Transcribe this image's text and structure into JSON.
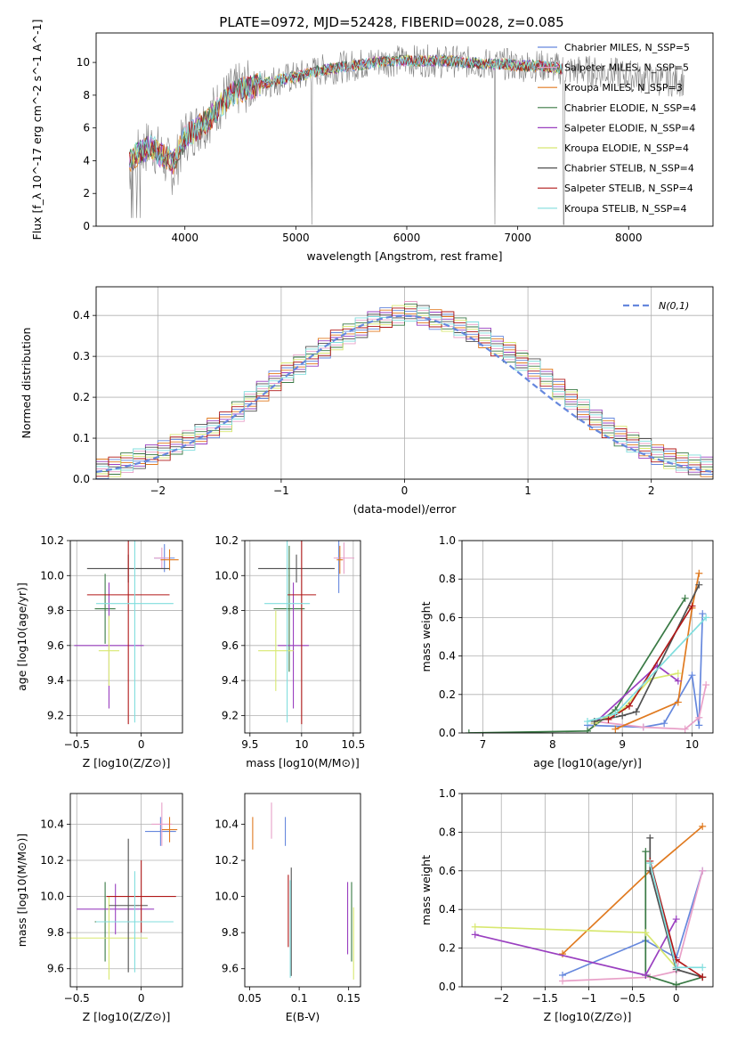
{
  "figure": {
    "title": "PLATE=0972, MJD=52428, FIBERID=0028, z=0.085"
  },
  "chart_data": [
    {
      "id": "spectrum",
      "type": "line",
      "title": "PLATE=0972, MJD=52428, FIBERID=0028, z=0.085",
      "xlabel": "wavelength [Angstrom, rest frame]",
      "ylabel": "Flux [f_λ 10^-17 erg cm^-2 s^-1 A^-1]",
      "xlim": [
        3200,
        8760
      ],
      "ylim": [
        0,
        11.8
      ],
      "xticks": [
        4000,
        5000,
        6000,
        7000,
        8000
      ],
      "yticks": [
        0,
        2,
        4,
        6,
        8,
        10
      ],
      "grid": false,
      "legend_position": "right",
      "observed": {
        "color": "#808080",
        "x": [
          3500,
          3600,
          3700,
          3800,
          3900,
          4000,
          4100,
          4200,
          4300,
          4400,
          4500,
          4600,
          4700,
          4800,
          4900,
          5000,
          5100,
          5200,
          5300,
          5400,
          5500,
          5600,
          5700,
          5800,
          5900,
          6000,
          6100,
          6200,
          6300,
          6400,
          6500,
          6600,
          6700,
          6800,
          6900,
          7000,
          7100,
          7200,
          7300,
          7400,
          7500,
          7600,
          7700,
          7800,
          7900,
          8000,
          8100,
          8200,
          8300,
          8400,
          8500
        ],
        "y": [
          3.5,
          4.6,
          5.0,
          4.2,
          3.4,
          5.5,
          6.0,
          6.5,
          7.4,
          8.0,
          8.4,
          8.5,
          8.7,
          8.9,
          9.0,
          9.1,
          9.3,
          9.5,
          9.6,
          9.7,
          9.8,
          9.9,
          10.0,
          10.1,
          10.1,
          10.1,
          10.1,
          10.1,
          10.0,
          10.1,
          10.0,
          10.0,
          9.9,
          9.9,
          9.9,
          9.8,
          9.8,
          9.8,
          9.7,
          9.6,
          9.5,
          9.5,
          9.4,
          9.4,
          9.3,
          9.2,
          9.1,
          9.0,
          8.9,
          8.9,
          8.9
        ]
      },
      "model_shape": {
        "x": [
          3500,
          3600,
          3700,
          3800,
          3900,
          4000,
          4100,
          4200,
          4300,
          4400,
          4500,
          4600,
          4700,
          4800,
          4900,
          5000,
          5100,
          5200,
          5300,
          5400,
          5500,
          5600,
          5700,
          5800,
          5900,
          6000,
          6100,
          6200,
          6300,
          6400,
          6500,
          6600,
          6700,
          6800,
          6900,
          7000,
          7100,
          7200,
          7300,
          7400
        ],
        "y": [
          4.0,
          4.6,
          4.8,
          4.3,
          3.9,
          5.4,
          5.9,
          6.4,
          7.2,
          7.9,
          8.3,
          8.5,
          8.7,
          8.9,
          9.0,
          9.1,
          9.3,
          9.5,
          9.6,
          9.7,
          9.8,
          9.9,
          10.0,
          10.1,
          10.1,
          10.1,
          10.1,
          10.1,
          10.1,
          10.1,
          10.0,
          10.0,
          9.9,
          9.9,
          9.9,
          9.8,
          9.8,
          9.8,
          9.7,
          9.6
        ]
      },
      "series": [
        {
          "name": "Chabrier MILES, N_SSP=5",
          "color": "#6688dd"
        },
        {
          "name": "Salpeter MILES, N_SSP=5",
          "color": "#e8a0c8"
        },
        {
          "name": "Kroupa MILES, N_SSP=3",
          "color": "#e07a20"
        },
        {
          "name": "Chabrier ELODIE, N_SSP=4",
          "color": "#3a7a45"
        },
        {
          "name": "Salpeter ELODIE, N_SSP=4",
          "color": "#9a40c0"
        },
        {
          "name": "Kroupa ELODIE, N_SSP=4",
          "color": "#d8e870"
        },
        {
          "name": "Chabrier STELIB, N_SSP=4",
          "color": "#505050"
        },
        {
          "name": "Salpeter STELIB, N_SSP=4",
          "color": "#b01818"
        },
        {
          "name": "Kroupa STELIB, N_SSP=4",
          "color": "#80dede"
        }
      ]
    },
    {
      "id": "residual-hist",
      "type": "bar",
      "xlabel": "(data-model)/error",
      "ylabel": "Normed distribution",
      "xlim": [
        -2.5,
        2.5
      ],
      "ylim": [
        0,
        0.47
      ],
      "xticks": [
        -2,
        -1,
        0,
        1,
        2
      ],
      "yticks": [
        0.0,
        0.1,
        0.2,
        0.3,
        0.4
      ],
      "grid": true,
      "legend_position": "top-right",
      "legend_entry": "N(0,1)",
      "gaussian_color": "#6688dd",
      "bin_edges": [
        -2.5,
        -2.4,
        -2.3,
        -2.2,
        -2.1,
        -2.0,
        -1.9,
        -1.8,
        -1.7,
        -1.6,
        -1.5,
        -1.4,
        -1.3,
        -1.2,
        -1.1,
        -1.0,
        -0.9,
        -0.8,
        -0.7,
        -0.6,
        -0.5,
        -0.4,
        -0.3,
        -0.2,
        -0.1,
        0.0,
        0.1,
        0.2,
        0.3,
        0.4,
        0.5,
        0.6,
        0.7,
        0.8,
        0.9,
        1.0,
        1.1,
        1.2,
        1.3,
        1.4,
        1.5,
        1.6,
        1.7,
        1.8,
        1.9,
        2.0,
        2.1,
        2.2,
        2.3,
        2.4,
        2.5
      ],
      "hist_values": [
        0.025,
        0.03,
        0.04,
        0.05,
        0.06,
        0.07,
        0.085,
        0.095,
        0.11,
        0.125,
        0.14,
        0.165,
        0.19,
        0.215,
        0.24,
        0.26,
        0.28,
        0.3,
        0.32,
        0.34,
        0.355,
        0.37,
        0.385,
        0.395,
        0.4,
        0.41,
        0.4,
        0.39,
        0.385,
        0.37,
        0.36,
        0.345,
        0.325,
        0.31,
        0.29,
        0.27,
        0.245,
        0.22,
        0.195,
        0.17,
        0.145,
        0.125,
        0.105,
        0.09,
        0.075,
        0.06,
        0.05,
        0.04,
        0.035,
        0.03
      ]
    },
    {
      "id": "age-vs-Z",
      "type": "scatter",
      "xlabel": "Z [log10(Z/Z⊙)]",
      "ylabel": "age  [log10(age/yr)]",
      "xlim": [
        -0.55,
        0.32
      ],
      "ylim": [
        9.1,
        10.2
      ],
      "xticks": [
        -0.5,
        0.0
      ],
      "yticks": [
        9.2,
        9.4,
        9.6,
        9.8,
        10.0,
        10.2
      ],
      "grid": true,
      "points": [
        {
          "series": "Chabrier MILES",
          "x": 0.18,
          "y": 10.1,
          "xerr": 0.08,
          "yerr": 0.08
        },
        {
          "series": "Salpeter MILES",
          "x": 0.16,
          "y": 10.1,
          "xerr": 0.06,
          "yerr": 0.06
        },
        {
          "series": "Kroupa MILES",
          "x": 0.22,
          "y": 10.09,
          "xerr": 0.07,
          "yerr": 0.06
        },
        {
          "series": "Chabrier ELODIE",
          "x": -0.28,
          "y": 9.81,
          "xerr": 0.08,
          "yerr": 0.2
        },
        {
          "series": "Salpeter ELODIE",
          "x": -0.25,
          "y": 9.6,
          "xerr": 0.27,
          "yerr": 0.36
        },
        {
          "series": "Kroupa ELODIE",
          "x": -0.25,
          "y": 9.57,
          "xerr": 0.08,
          "yerr": 0.2
        },
        {
          "series": "Chabrier STELIB",
          "x": -0.1,
          "y": 10.04,
          "xerr": 0.32,
          "yerr": 0.08
        },
        {
          "series": "Salpeter STELIB",
          "x": -0.1,
          "y": 9.89,
          "xerr": 0.32,
          "yerr": 0.74
        },
        {
          "series": "Kroupa STELIB",
          "x": -0.05,
          "y": 9.84,
          "xerr": 0.3,
          "yerr": 0.68
        }
      ]
    },
    {
      "id": "age-vs-mass",
      "type": "scatter",
      "xlabel": "mass [log10(M/M⊙)]",
      "ylabel": "",
      "xlim": [
        9.45,
        10.57
      ],
      "ylim": [
        9.1,
        10.2
      ],
      "xticks": [
        9.5,
        10.0,
        10.5
      ],
      "yticks": [
        9.2,
        9.4,
        9.6,
        9.8,
        10.0,
        10.2
      ],
      "grid": true,
      "points": [
        {
          "series": "Chabrier MILES",
          "x": 10.36,
          "y": 10.1,
          "xerr": 0.02,
          "yerr": 0.2
        },
        {
          "series": "Salpeter MILES",
          "x": 10.41,
          "y": 10.1,
          "xerr": 0.1,
          "yerr": 0.09
        },
        {
          "series": "Kroupa MILES",
          "x": 10.37,
          "y": 10.09,
          "xerr": 0.03,
          "yerr": 0.08
        },
        {
          "series": "Chabrier ELODIE",
          "x": 9.88,
          "y": 9.81,
          "xerr": 0.15,
          "yerr": 0.36
        },
        {
          "series": "Salpeter ELODIE",
          "x": 9.92,
          "y": 9.6,
          "xerr": 0.15,
          "yerr": 0.36
        },
        {
          "series": "Kroupa ELODIE",
          "x": 9.75,
          "y": 9.57,
          "xerr": 0.17,
          "yerr": 0.23
        },
        {
          "series": "Chabrier STELIB",
          "x": 9.95,
          "y": 10.04,
          "xerr": 0.37,
          "yerr": 0.08
        },
        {
          "series": "Salpeter STELIB",
          "x": 10.0,
          "y": 9.89,
          "xerr": 0.14,
          "yerr": 0.74
        },
        {
          "series": "Kroupa STELIB",
          "x": 9.86,
          "y": 9.84,
          "xerr": 0.22,
          "yerr": 0.68
        }
      ]
    },
    {
      "id": "massweight-vs-age",
      "type": "line",
      "xlabel": "age  [log10(age/yr)]",
      "ylabel": "mass weight",
      "xlim": [
        6.7,
        10.3
      ],
      "ylim": [
        0,
        1.0
      ],
      "xticks": [
        7,
        8,
        9,
        10
      ],
      "yticks": [
        0.0,
        0.2,
        0.4,
        0.6,
        0.8,
        1.0
      ],
      "grid": true,
      "series": [
        {
          "name": "Chabrier MILES",
          "x": [
            8.5,
            9.3,
            9.6,
            10.0,
            10.1,
            10.15
          ],
          "y": [
            0.04,
            0.03,
            0.05,
            0.3,
            0.04,
            0.62
          ]
        },
        {
          "name": "Salpeter MILES",
          "x": [
            8.6,
            9.3,
            9.9,
            10.1,
            10.2
          ],
          "y": [
            0.06,
            0.03,
            0.02,
            0.08,
            0.25
          ]
        },
        {
          "name": "Kroupa MILES",
          "x": [
            8.9,
            9.8,
            10.0,
            10.1
          ],
          "y": [
            0.02,
            0.16,
            0.65,
            0.83
          ]
        },
        {
          "name": "Chabrier ELODIE",
          "x": [
            6.8,
            8.5,
            8.9,
            9.9
          ],
          "y": [
            0.0,
            0.01,
            0.12,
            0.7
          ]
        },
        {
          "name": "Salpeter ELODIE",
          "x": [
            8.6,
            9.5,
            9.8
          ],
          "y": [
            0.05,
            0.35,
            0.27
          ]
        },
        {
          "name": "Kroupa ELODIE",
          "x": [
            8.6,
            9.0,
            9.4,
            9.8
          ],
          "y": [
            0.05,
            0.12,
            0.28,
            0.31
          ]
        },
        {
          "name": "Chabrier STELIB",
          "x": [
            8.6,
            9.0,
            9.2,
            10.1
          ],
          "y": [
            0.06,
            0.09,
            0.11,
            0.77
          ]
        },
        {
          "name": "Salpeter STELIB",
          "x": [
            8.8,
            9.1,
            10.0
          ],
          "y": [
            0.07,
            0.14,
            0.66
          ]
        },
        {
          "name": "Kroupa STELIB",
          "x": [
            8.5,
            8.9,
            10.2
          ],
          "y": [
            0.06,
            0.1,
            0.6
          ]
        }
      ]
    },
    {
      "id": "mass-vs-Z",
      "type": "scatter",
      "xlabel": "Z [log10(Z/Z⊙)]",
      "ylabel": "mass [log10(M/M⊙)]",
      "xlim": [
        -0.55,
        0.32
      ],
      "ylim": [
        9.5,
        10.57
      ],
      "xticks": [
        -0.5,
        0.0
      ],
      "yticks": [
        9.6,
        9.8,
        10.0,
        10.2,
        10.4
      ],
      "grid": true,
      "points": [
        {
          "series": "Chabrier MILES",
          "x": 0.15,
          "y": 10.36,
          "xerr": 0.12,
          "yerr": 0.08
        },
        {
          "series": "Salpeter MILES",
          "x": 0.16,
          "y": 10.4,
          "xerr": 0.08,
          "yerr": 0.12
        },
        {
          "series": "Kroupa MILES",
          "x": 0.22,
          "y": 10.37,
          "xerr": 0.06,
          "yerr": 0.07
        },
        {
          "series": "Chabrier ELODIE",
          "x": -0.28,
          "y": 9.86,
          "xerr": 0.08,
          "yerr": 0.22
        },
        {
          "series": "Salpeter ELODIE",
          "x": -0.2,
          "y": 9.93,
          "xerr": 0.3,
          "yerr": 0.14
        },
        {
          "series": "Kroupa ELODIE",
          "x": -0.25,
          "y": 9.77,
          "xerr": 0.3,
          "yerr": 0.23
        },
        {
          "series": "Chabrier STELIB",
          "x": -0.1,
          "y": 9.95,
          "xerr": 0.15,
          "yerr": 0.37
        },
        {
          "series": "Salpeter STELIB",
          "x": 0.0,
          "y": 10.0,
          "xerr": 0.27,
          "yerr": 0.2
        },
        {
          "series": "Kroupa STELIB",
          "x": -0.05,
          "y": 9.86,
          "xerr": 0.3,
          "yerr": 0.28
        }
      ]
    },
    {
      "id": "mass-vs-ebv",
      "type": "scatter",
      "xlabel": "E(B-V)",
      "ylabel": "",
      "xlim": [
        0.045,
        0.162
      ],
      "ylim": [
        9.5,
        10.57
      ],
      "xticks": [
        0.05,
        0.1,
        0.15
      ],
      "yticks": [
        9.6,
        9.8,
        10.0,
        10.2,
        10.4
      ],
      "grid": false,
      "points": [
        {
          "series": "Chabrier MILES",
          "x": 0.086,
          "y": 10.36,
          "yerr": 0.08
        },
        {
          "series": "Salpeter MILES",
          "x": 0.072,
          "y": 10.42,
          "yerr": 0.1
        },
        {
          "series": "Kroupa MILES",
          "x": 0.053,
          "y": 10.35,
          "yerr": 0.09
        },
        {
          "series": "Chabrier ELODIE",
          "x": 0.153,
          "y": 9.86,
          "yerr": 0.22
        },
        {
          "series": "Salpeter ELODIE",
          "x": 0.149,
          "y": 9.88,
          "yerr": 0.2
        },
        {
          "series": "Kroupa ELODIE",
          "x": 0.155,
          "y": 9.74,
          "yerr": 0.2
        },
        {
          "series": "Chabrier STELIB",
          "x": 0.092,
          "y": 9.86,
          "yerr": 0.3
        },
        {
          "series": "Salpeter STELIB",
          "x": 0.089,
          "y": 9.92,
          "yerr": 0.2
        },
        {
          "series": "Kroupa STELIB",
          "x": 0.091,
          "y": 9.82,
          "yerr": 0.27
        }
      ]
    },
    {
      "id": "massweight-vs-Z",
      "type": "line",
      "xlabel": "Z [log10(Z/Z⊙)]",
      "ylabel": "mass weight",
      "xlim": [
        -2.45,
        0.42
      ],
      "ylim": [
        0,
        1.0
      ],
      "xticks": [
        -2.0,
        -1.5,
        -1.0,
        -0.5,
        0.0
      ],
      "yticks": [
        0.0,
        0.2,
        0.4,
        0.6,
        0.8,
        1.0
      ],
      "grid": true,
      "series": [
        {
          "name": "Chabrier MILES",
          "x": [
            -1.3,
            -0.35,
            0.0,
            0.3
          ],
          "y": [
            0.06,
            0.24,
            0.15,
            0.6
          ]
        },
        {
          "name": "Salpeter MILES",
          "x": [
            -1.3,
            -0.3,
            0.0,
            0.3
          ],
          "y": [
            0.03,
            0.05,
            0.08,
            0.6
          ]
        },
        {
          "name": "Kroupa MILES",
          "x": [
            -1.3,
            -0.3,
            0.3
          ],
          "y": [
            0.17,
            0.6,
            0.83
          ]
        },
        {
          "name": "Chabrier ELODIE",
          "x": [
            -0.35,
            -0.35,
            0.0,
            0.3
          ],
          "y": [
            0.7,
            0.06,
            0.01,
            0.05
          ]
        },
        {
          "name": "Salpeter ELODIE",
          "x": [
            -2.3,
            -0.35,
            0.0
          ],
          "y": [
            0.27,
            0.06,
            0.35
          ]
        },
        {
          "name": "Kroupa ELODIE",
          "x": [
            -2.3,
            -0.35,
            0.0
          ],
          "y": [
            0.31,
            0.28,
            0.1
          ]
        },
        {
          "name": "Chabrier STELIB",
          "x": [
            -0.3,
            -0.3,
            0.0,
            0.3
          ],
          "y": [
            0.77,
            0.6,
            0.09,
            0.05
          ]
        },
        {
          "name": "Salpeter STELIB",
          "x": [
            -0.3,
            0.0,
            0.3
          ],
          "y": [
            0.65,
            0.14,
            0.05
          ]
        },
        {
          "name": "Kroupa STELIB",
          "x": [
            -0.3,
            0.0,
            0.3
          ],
          "y": [
            0.64,
            0.1,
            0.1
          ]
        }
      ]
    }
  ]
}
